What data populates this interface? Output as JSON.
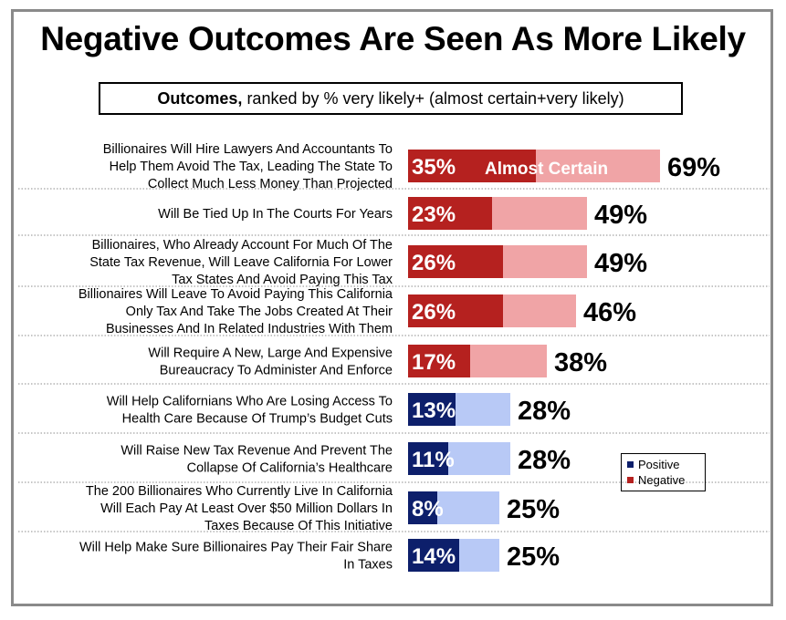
{
  "title": "Negative Outcomes Are Seen As More Likely",
  "subtitle": {
    "bold": "Outcomes,",
    "rest": "ranked by % very likely+ (almost certain+very likely)"
  },
  "legend": {
    "positive": "Positive",
    "negative": "Negative"
  },
  "colors": {
    "negative_dark": "#b5211f",
    "negative_light": "#f0a4a6",
    "positive_dark": "#0d1f6b",
    "positive_light": "#b8c9f6"
  },
  "chart_data": {
    "type": "bar",
    "orientation": "horizontal",
    "stacked": true,
    "annotation": "Almost Certain",
    "categories": [
      [
        "Billionaires Will Hire Lawyers And Accountants To",
        "Help Them Avoid The Tax, Leading The State To",
        "Collect Much Less Money Than Projected"
      ],
      [
        "Will Be Tied Up In The Courts For Years"
      ],
      [
        "Billionaires, Who Already Account For Much Of The",
        "State Tax Revenue, Will Leave California For Lower",
        "Tax States And Avoid Paying This Tax"
      ],
      [
        "Billionaires Will Leave To Avoid Paying This California",
        "Only Tax And Take The Jobs Created At Their",
        "Businesses And In Related Industries With Them"
      ],
      [
        "Will Require A New, Large And Expensive",
        "Bureaucracy To Administer And Enforce"
      ],
      [
        "Will Help Californians Who Are Losing Access To",
        "Health Care Because Of Trump’s Budget Cuts"
      ],
      [
        "Will Raise New Tax Revenue And Prevent The",
        "Collapse Of California’s Healthcare"
      ],
      [
        "The 200 Billionaires Who Currently Live In California",
        "Will Each Pay At Least Over $50 Million Dollars In",
        "Taxes Because Of This Initiative"
      ],
      [
        "Will Help Make Sure Billionaires Pay Their Fair Share",
        "In Taxes"
      ]
    ],
    "kind": [
      "Negative",
      "Negative",
      "Negative",
      "Negative",
      "Negative",
      "Positive",
      "Positive",
      "Positive",
      "Positive"
    ],
    "series": [
      {
        "name": "Almost Certain",
        "values": [
          35,
          23,
          26,
          26,
          17,
          13,
          11,
          8,
          14
        ],
        "labels": [
          "35%",
          "23%",
          "26%",
          "26%",
          "17%",
          "13%",
          "11%",
          "8%",
          "14%"
        ]
      },
      {
        "values": [
          69,
          49,
          49,
          46,
          38,
          28,
          28,
          25,
          25
        ],
        "labels": [
          "69%",
          "49%",
          "49%",
          "46%",
          "38%",
          "28%",
          "28%",
          "25%",
          "25%"
        ]
      }
    ],
    "xlim": [
      0,
      100
    ]
  }
}
